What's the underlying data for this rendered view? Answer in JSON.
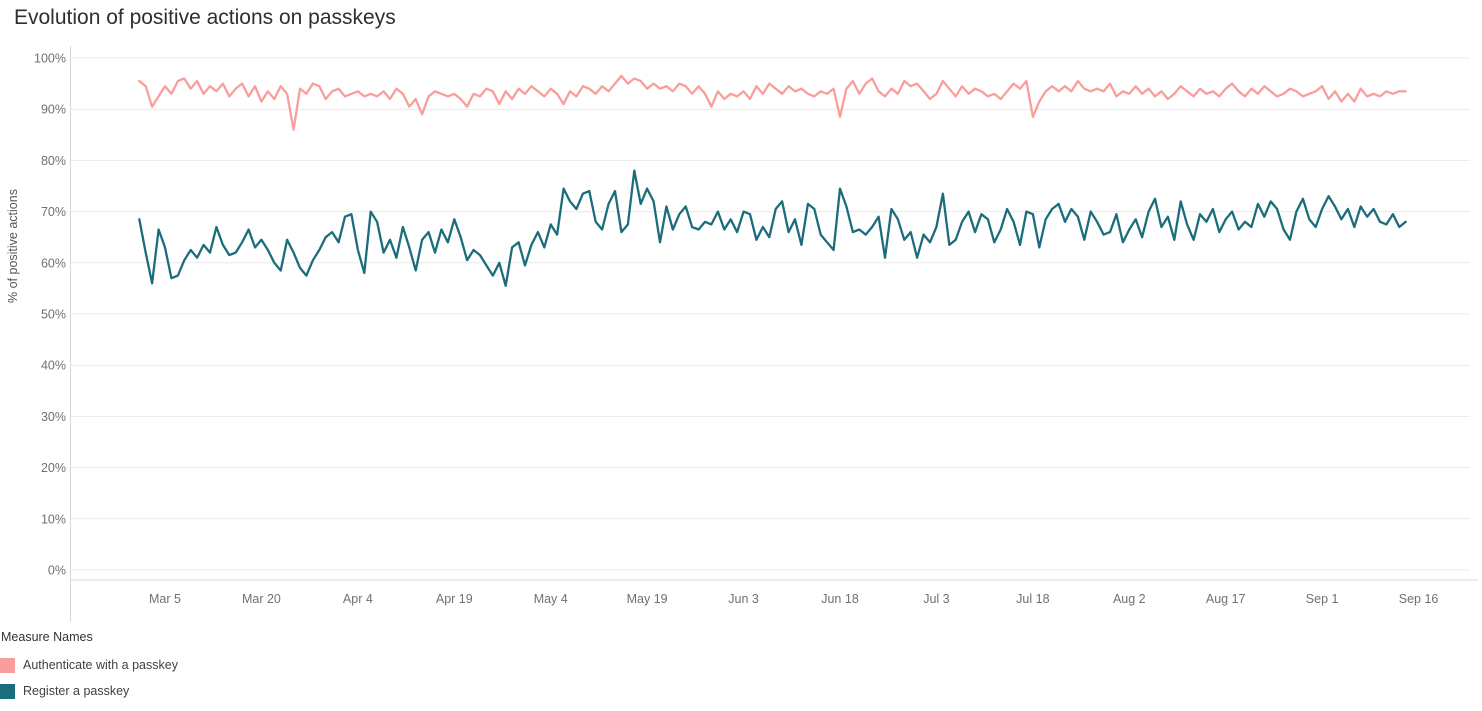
{
  "title": "Evolution of positive actions on passkeys",
  "y_axis_label": "% of positive actions",
  "legend": {
    "title": "Measure Names",
    "items": [
      {
        "label": "Authenticate with a passkey",
        "color": "#f89f9b"
      },
      {
        "label": "Register a passkey",
        "color": "#1b6d7c"
      }
    ]
  },
  "chart_data": {
    "type": "line",
    "title": "Evolution of positive actions on passkeys",
    "xlabel": "",
    "ylabel": "% of positive actions",
    "ylim": [
      0,
      100
    ],
    "xlim": [
      -10,
      207
    ],
    "x_start_date": "Mar 1",
    "x_interval": "daily",
    "grid": "horizontal",
    "legend_position": "bottom-left",
    "y_ticks": [
      {
        "v": 0,
        "label": "0%"
      },
      {
        "v": 10,
        "label": "10%"
      },
      {
        "v": 20,
        "label": "20%"
      },
      {
        "v": 30,
        "label": "30%"
      },
      {
        "v": 40,
        "label": "40%"
      },
      {
        "v": 50,
        "label": "50%"
      },
      {
        "v": 60,
        "label": "60%"
      },
      {
        "v": 70,
        "label": "70%"
      },
      {
        "v": 80,
        "label": "80%"
      },
      {
        "v": 90,
        "label": "90%"
      },
      {
        "v": 100,
        "label": "100%"
      }
    ],
    "x_ticks": [
      {
        "day": 4,
        "label": "Mar 5"
      },
      {
        "day": 19,
        "label": "Mar 20"
      },
      {
        "day": 34,
        "label": "Apr 4"
      },
      {
        "day": 49,
        "label": "Apr 19"
      },
      {
        "day": 64,
        "label": "May 4"
      },
      {
        "day": 79,
        "label": "May 19"
      },
      {
        "day": 94,
        "label": "Jun 3"
      },
      {
        "day": 109,
        "label": "Jun 18"
      },
      {
        "day": 124,
        "label": "Jul 3"
      },
      {
        "day": 139,
        "label": "Jul 18"
      },
      {
        "day": 154,
        "label": "Aug 2"
      },
      {
        "day": 169,
        "label": "Aug 17"
      },
      {
        "day": 184,
        "label": "Sep 1"
      },
      {
        "day": 199,
        "label": "Sep 16"
      }
    ],
    "series": [
      {
        "id": "authenticate",
        "name": "Authenticate with a passkey",
        "color": "#f89f9b",
        "values": [
          95.5,
          94.5,
          90.5,
          92.5,
          94.5,
          93,
          95.5,
          96,
          94,
          95.5,
          93,
          94.5,
          93.5,
          95,
          92.5,
          94,
          95,
          92.5,
          94.5,
          91.5,
          93.5,
          92,
          94.5,
          93,
          86,
          94,
          93,
          95,
          94.5,
          92,
          93.5,
          94,
          92.5,
          93,
          93.5,
          92.5,
          93,
          92.5,
          93.5,
          92,
          94,
          93,
          90.5,
          92,
          89,
          92.5,
          93.5,
          93,
          92.5,
          93,
          92,
          90.5,
          93,
          92.5,
          94,
          93.5,
          91,
          93.5,
          92,
          94,
          93,
          94.5,
          93.5,
          92.5,
          94,
          93,
          91,
          93.5,
          92.5,
          94.5,
          94,
          93,
          94.5,
          93.5,
          95,
          96.5,
          95,
          96,
          95.5,
          94,
          95,
          94,
          94.5,
          93.5,
          95,
          94.5,
          93,
          94.5,
          93,
          90.5,
          93.5,
          92,
          93,
          92.5,
          93.5,
          92,
          94.5,
          93,
          95,
          94,
          93,
          94.5,
          93.5,
          94,
          93,
          92.5,
          93.5,
          93,
          94,
          88.5,
          94,
          95.5,
          93,
          95,
          96,
          93.5,
          92.5,
          94,
          93,
          95.5,
          94.5,
          95,
          93.5,
          92,
          93,
          95.5,
          94,
          92.5,
          94.5,
          93,
          94,
          93.5,
          92.5,
          93,
          92,
          93.5,
          95,
          94,
          95.5,
          88.5,
          91.5,
          93.5,
          94.5,
          93.5,
          94.5,
          93.5,
          95.5,
          94,
          93.5,
          94,
          93.5,
          95,
          92.5,
          93.5,
          93,
          94.5,
          93,
          94,
          92.5,
          93.5,
          92,
          93,
          94.5,
          93.5,
          92.5,
          94,
          93,
          93.5,
          92.5,
          94,
          95,
          93.5,
          92.5,
          94,
          93,
          94.5,
          93.5,
          92.5,
          93,
          94,
          93.5,
          92.5,
          93,
          93.5,
          94.5,
          92,
          93.5,
          91.5,
          93,
          91.5,
          94,
          92.5,
          93,
          92.5,
          93.5,
          93,
          93.5,
          93.5
        ]
      },
      {
        "id": "register",
        "name": "Register a passkey",
        "color": "#1b6d7c",
        "values": [
          68.5,
          62,
          56,
          66.5,
          63,
          57,
          57.5,
          60.5,
          62.5,
          61,
          63.5,
          62,
          67,
          63.5,
          61.5,
          62,
          64,
          66.5,
          63,
          64.5,
          62.5,
          60,
          58.5,
          64.5,
          62,
          59,
          57.5,
          60.5,
          62.5,
          65,
          66,
          64,
          69,
          69.5,
          62.5,
          58,
          70,
          68,
          62,
          64.5,
          61,
          67,
          63,
          58.5,
          64.5,
          66,
          62,
          66.5,
          64,
          68.5,
          65,
          60.5,
          62.5,
          61.5,
          59.5,
          57.5,
          60,
          55.5,
          63,
          64,
          59.5,
          63.5,
          66,
          63,
          67.5,
          65.5,
          74.5,
          72,
          70.5,
          73.5,
          74,
          68,
          66.5,
          71.5,
          74,
          66,
          67.5,
          78,
          71.5,
          74.5,
          72,
          64,
          71,
          66.5,
          69.5,
          71,
          67,
          66.5,
          68,
          67.5,
          70,
          66.5,
          68.5,
          66,
          70,
          69.5,
          64.5,
          67,
          65,
          70.5,
          72,
          66,
          68.5,
          63.5,
          71.5,
          70.5,
          65.5,
          64,
          62.5,
          74.5,
          71,
          66,
          66.5,
          65.5,
          67,
          69,
          61,
          70.5,
          68.5,
          64.5,
          66,
          61,
          65.5,
          64,
          67,
          73.5,
          63.5,
          64.5,
          68,
          70,
          66,
          69.5,
          68.5,
          64,
          66.5,
          70.5,
          68,
          63.5,
          70,
          69.5,
          63,
          68.5,
          70.5,
          71.5,
          68,
          70.5,
          69,
          64.5,
          70,
          68,
          65.5,
          66,
          69.5,
          64,
          66.5,
          68.5,
          65,
          70,
          72.5,
          67,
          69,
          64.5,
          72,
          67.5,
          64.5,
          69.5,
          68,
          70.5,
          66,
          68.5,
          70,
          66.5,
          68,
          67,
          71.5,
          69,
          72,
          70.5,
          66.5,
          64.5,
          70,
          72.5,
          68.5,
          67,
          70.5,
          73,
          71,
          68.5,
          70.5,
          67,
          71,
          69,
          70.5,
          68,
          67.5,
          69.5,
          67,
          68
        ]
      }
    ]
  }
}
